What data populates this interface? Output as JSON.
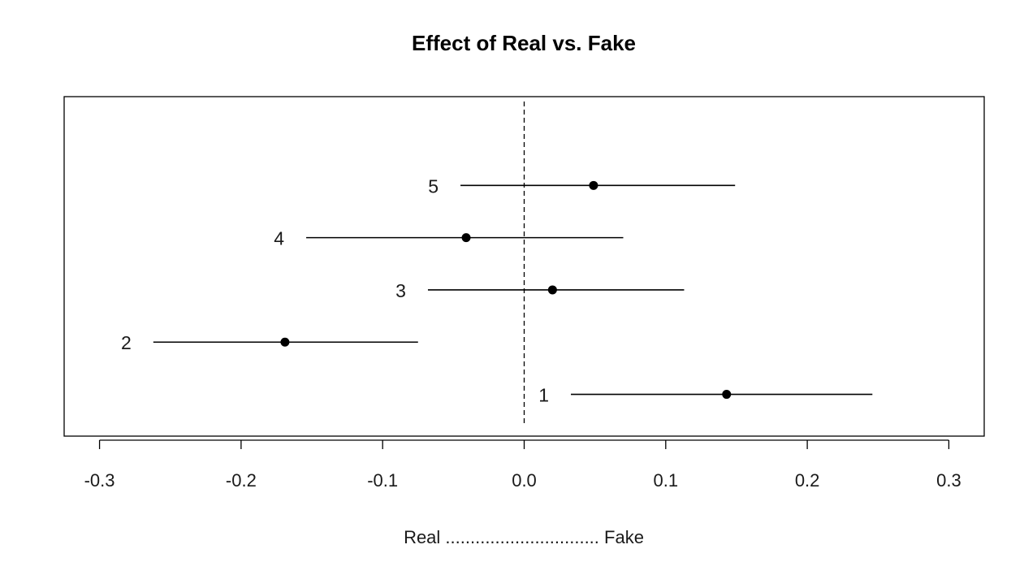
{
  "chart_data": {
    "type": "scatter",
    "title": "Effect of Real vs. Fake",
    "xlabel": "Real ............................... Fake",
    "ylabel": "",
    "xlim": [
      -0.325,
      0.325
    ],
    "ylim": [
      0.2,
      6.7
    ],
    "x_ticks": [
      -0.3,
      -0.2,
      -0.1,
      0.0,
      0.1,
      0.2,
      0.3
    ],
    "x_tick_labels": [
      "-0.3",
      "-0.2",
      "-0.1",
      "0.0",
      "0.1",
      "0.2",
      "0.3"
    ],
    "reference_line": {
      "x": 0.0,
      "style": "dashed"
    },
    "grid": false,
    "points": [
      {
        "label": "1",
        "estimate": 0.143,
        "lower": 0.033,
        "upper": 0.246,
        "y": 1
      },
      {
        "label": "2",
        "estimate": -0.169,
        "lower": -0.262,
        "upper": -0.075,
        "y": 2
      },
      {
        "label": "3",
        "estimate": 0.02,
        "lower": -0.068,
        "upper": 0.113,
        "y": 3
      },
      {
        "label": "4",
        "estimate": -0.041,
        "lower": -0.154,
        "upper": 0.07,
        "y": 4
      },
      {
        "label": "5",
        "estimate": 0.049,
        "lower": -0.045,
        "upper": 0.149,
        "y": 5
      }
    ]
  }
}
